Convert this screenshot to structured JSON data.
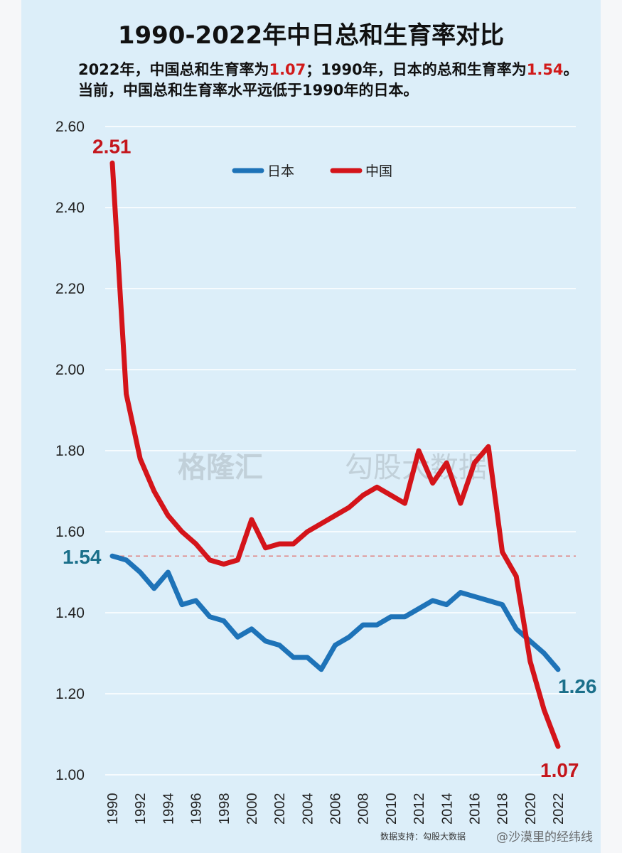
{
  "header": {
    "title": "1990-2022年中日总和生育率对比",
    "subtitle_part1": "2022年，中国总和生育率为",
    "subtitle_val1": "1.07",
    "subtitle_part2": "；1990年，日本的总和生育率为",
    "subtitle_val2": "1.54",
    "subtitle_part3": "。当前，中国总和生育率水平远低于1990年的日本。"
  },
  "colors": {
    "japan": "#1e73b8",
    "china": "#d4141a",
    "grid": "#ffffff",
    "refline": "#e08080",
    "background": "#dceef9"
  },
  "chart_data": {
    "type": "line",
    "title": "1990-2022年中日总和生育率对比",
    "xlabel": "",
    "ylabel": "",
    "ylim": [
      1.0,
      2.6
    ],
    "yticks": [
      "1.00",
      "1.20",
      "1.40",
      "1.60",
      "1.80",
      "2.00",
      "2.20",
      "2.40",
      "2.60"
    ],
    "xticks": [
      "1990",
      "1992",
      "1994",
      "1996",
      "1998",
      "2000",
      "2002",
      "2004",
      "2006",
      "2008",
      "2010",
      "2012",
      "2014",
      "2016",
      "2018",
      "2020",
      "2022"
    ],
    "grid": true,
    "legend_position": "top-center",
    "reference_line": {
      "value": 1.54,
      "style": "dashed"
    },
    "x": [
      1990,
      1991,
      1992,
      1993,
      1994,
      1995,
      1996,
      1997,
      1998,
      1999,
      2000,
      2001,
      2002,
      2003,
      2004,
      2005,
      2006,
      2007,
      2008,
      2009,
      2010,
      2011,
      2012,
      2013,
      2014,
      2015,
      2016,
      2017,
      2018,
      2019,
      2020,
      2021,
      2022
    ],
    "series": [
      {
        "name": "日本",
        "color": "#1e73b8",
        "end_label": "1.26",
        "values": [
          1.54,
          1.53,
          1.5,
          1.46,
          1.5,
          1.42,
          1.43,
          1.39,
          1.38,
          1.34,
          1.36,
          1.33,
          1.32,
          1.29,
          1.29,
          1.26,
          1.32,
          1.34,
          1.37,
          1.37,
          1.39,
          1.39,
          1.41,
          1.43,
          1.42,
          1.45,
          1.44,
          1.43,
          1.42,
          1.36,
          1.33,
          1.3,
          1.26
        ]
      },
      {
        "name": "中国",
        "color": "#d4141a",
        "end_label": "1.07",
        "values": [
          2.51,
          1.94,
          1.78,
          1.7,
          1.64,
          1.6,
          1.57,
          1.53,
          1.52,
          1.53,
          1.63,
          1.56,
          1.57,
          1.57,
          1.6,
          1.62,
          1.64,
          1.66,
          1.69,
          1.71,
          1.69,
          1.67,
          1.8,
          1.72,
          1.77,
          1.67,
          1.77,
          1.81,
          1.55,
          1.49,
          1.28,
          1.16,
          1.07
        ]
      }
    ],
    "annotations": [
      {
        "label": "2.51",
        "series": "中国",
        "year": 1990
      },
      {
        "label": "1.54",
        "series": "日本",
        "year": 1990
      },
      {
        "label": "1.26",
        "series": "日本",
        "year": 2022
      },
      {
        "label": "1.07",
        "series": "中国",
        "year": 2022
      }
    ]
  },
  "watermark": {
    "logo_text": "格隆汇",
    "partner_text": "勾股大数据",
    "source": "数据支持：勾股大数据",
    "weibo": "@沙漠里的经纬线"
  }
}
